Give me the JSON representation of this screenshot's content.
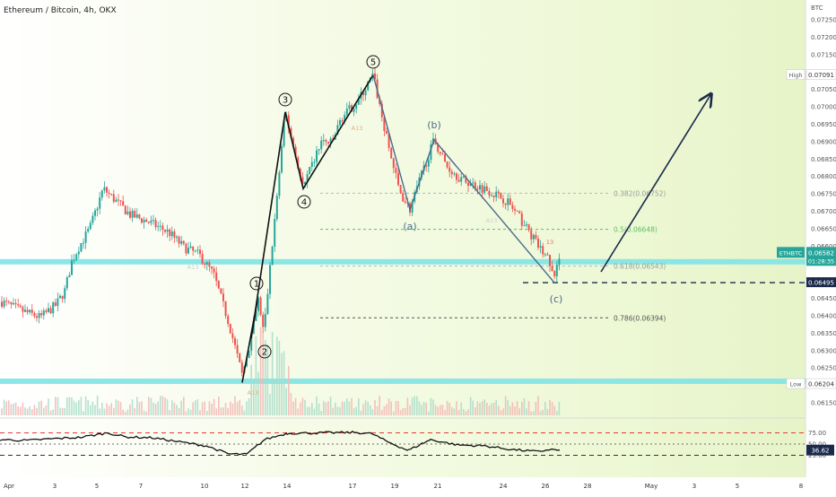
{
  "chart_data": {
    "type": "candlestick",
    "title": "Ethereum / Bitcoin, 4h, OKX",
    "currency": "BTC",
    "symbol": "ETHBTC",
    "price_axis": {
      "min": 0.0612,
      "max": 0.0727,
      "ticks": [
        "0.07250",
        "0.07200",
        "0.07150",
        "0.07100",
        "0.07050",
        "0.07000",
        "0.06950",
        "0.06900",
        "0.06850",
        "0.06800",
        "0.06750",
        "0.06700",
        "0.06650",
        "0.06600",
        "0.06550",
        "0.06500",
        "0.06450",
        "0.06400",
        "0.06350",
        "0.06300",
        "0.06250",
        "0.06200",
        "0.06150"
      ]
    },
    "time_axis": [
      "Apr",
      "3",
      "5",
      "7",
      "10",
      "12",
      "14",
      "17",
      "19",
      "21",
      "24",
      "26",
      "28",
      "May",
      "3",
      "5",
      "8"
    ],
    "price_labels": {
      "high": {
        "label": "High",
        "value": "0.07091"
      },
      "low": {
        "label": "Low",
        "value": "0.06204"
      },
      "current": {
        "symbol": "ETHBTC",
        "value": "0.06582",
        "countdown": "01:28:35"
      },
      "marker": {
        "value": "0.06495"
      }
    },
    "fibonacci": [
      {
        "label": "0.382(0.06752)",
        "value": 0.06752,
        "color": "#b8b8b8"
      },
      {
        "label": "0.5(0.06648)",
        "value": 0.06648,
        "color": "#5cbf64"
      },
      {
        "label": "0.618(0.06543)",
        "value": 0.06543,
        "color": "#b8b8b8"
      },
      {
        "label": "0.786(0.06394)",
        "value": 0.06394,
        "color": "#555555"
      }
    ],
    "support_zones": [
      0.06555,
      0.06212
    ],
    "dashed_level": 0.06495,
    "elliott_waves": {
      "impulse": [
        {
          "label": "1",
          "x": 287,
          "y": 0.06445
        },
        {
          "label": "2",
          "x": 280,
          "y": 0.06335
        },
        {
          "label": "3",
          "x": 318,
          "y": 0.06985
        },
        {
          "label": "4",
          "x": 338,
          "y": 0.06765
        },
        {
          "label": "5",
          "x": 416,
          "y": 0.07091
        }
      ],
      "correction": [
        {
          "label": "(a)",
          "x": 457,
          "y": 0.06705
        },
        {
          "label": "(b)",
          "x": 484,
          "y": 0.06905
        },
        {
          "label": "(c)",
          "x": 618,
          "y": 0.06495
        }
      ]
    },
    "annotations": [
      "A13",
      "A13",
      "A13",
      "A13",
      "13"
    ],
    "oscillator": {
      "levels": [
        "75.00",
        "50.00",
        "25.00"
      ],
      "current": "36.62"
    }
  }
}
